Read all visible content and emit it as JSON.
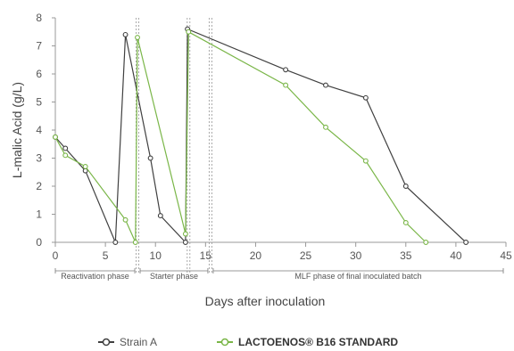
{
  "chart_data": {
    "type": "line",
    "title": "",
    "xlabel": "Days after inoculation",
    "ylabel": "L-malic Acid (g/L)",
    "xlim": [
      0,
      45
    ],
    "ylim": [
      0,
      8
    ],
    "xticks": [
      0,
      5,
      10,
      15,
      20,
      25,
      30,
      35,
      40,
      45
    ],
    "yticks": [
      0,
      1,
      2,
      3,
      4,
      5,
      6,
      7,
      8
    ],
    "grid": false,
    "legend_position": "bottom",
    "phase_dividers": [
      8.2,
      13.3,
      15.5
    ],
    "phases": [
      {
        "label": "Reactivation phase",
        "start": 0,
        "end": 8.2
      },
      {
        "label": "Starter phase",
        "start": 8.2,
        "end": 15.5
      },
      {
        "label": "MLF phase of final inoculated batch",
        "start": 15.5,
        "end": 45
      }
    ],
    "series": [
      {
        "name": "Strain A",
        "color": "#404040",
        "points": [
          [
            0,
            3.75
          ],
          [
            1,
            3.35
          ],
          [
            3,
            2.55
          ],
          [
            6,
            0.0
          ],
          [
            7,
            7.4
          ],
          [
            9.5,
            3.0
          ],
          [
            10.5,
            0.95
          ],
          [
            13,
            0.0
          ],
          [
            13.2,
            7.6
          ],
          [
            23,
            6.15
          ],
          [
            27,
            5.6
          ],
          [
            31,
            5.15
          ],
          [
            35,
            2.0
          ],
          [
            41,
            0.0
          ]
        ]
      },
      {
        "name": "LACTOENOS® B16 STANDARD",
        "color": "#7ab648",
        "points": [
          [
            0,
            3.75
          ],
          [
            1,
            3.1
          ],
          [
            3,
            2.7
          ],
          [
            7,
            0.8
          ],
          [
            8,
            0.0
          ],
          [
            8.2,
            7.3
          ],
          [
            13,
            0.3
          ],
          [
            13.3,
            7.5
          ],
          [
            23,
            5.6
          ],
          [
            27,
            4.1
          ],
          [
            31,
            2.9
          ],
          [
            35,
            0.7
          ],
          [
            37,
            0.0
          ]
        ]
      }
    ]
  }
}
